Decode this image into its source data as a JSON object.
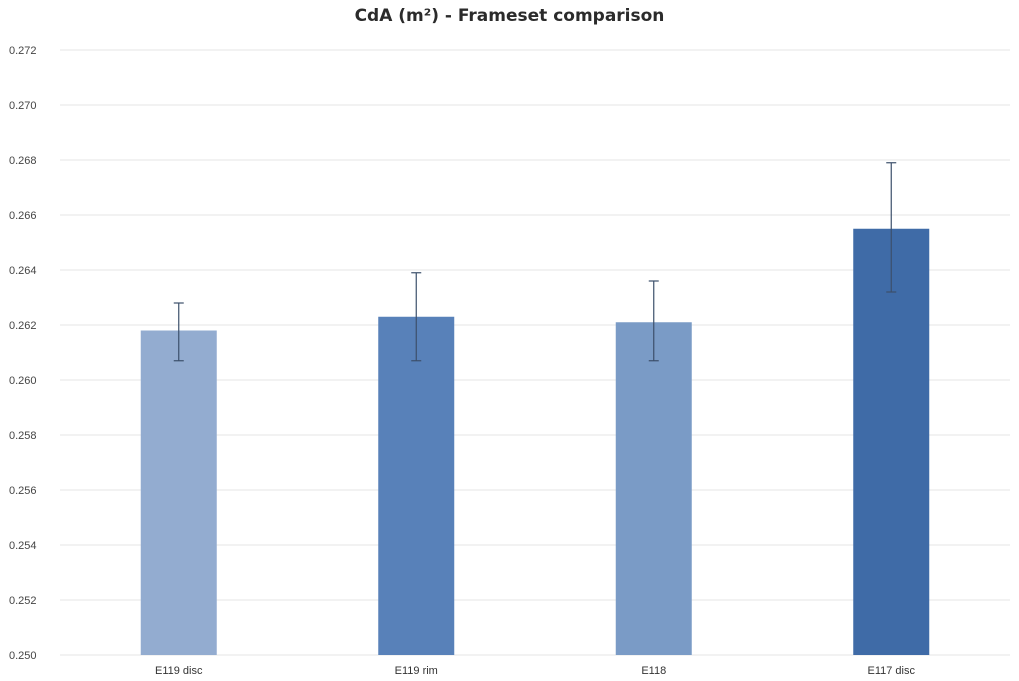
{
  "chart_data": {
    "type": "bar",
    "title": "CdA (m²) - Frameset comparison",
    "xlabel": "",
    "ylabel": "",
    "categories": [
      "E119 disc",
      "E119 rim",
      "E118",
      "E117 disc"
    ],
    "values": [
      0.2618,
      0.2623,
      0.2621,
      0.2655
    ],
    "error_low": [
      0.2607,
      0.2607,
      0.2607,
      0.2632
    ],
    "error_high": [
      0.2628,
      0.2639,
      0.2636,
      0.2679
    ],
    "bar_colors": [
      "#93acd0",
      "#5881b9",
      "#7a9bc6",
      "#3f6ba7"
    ],
    "ylim": [
      0.25,
      0.272
    ],
    "yticks": [
      "0.250",
      "0.252",
      "0.254",
      "0.256",
      "0.258",
      "0.260",
      "0.262",
      "0.264",
      "0.266",
      "0.268",
      "0.270",
      "0.272"
    ],
    "grid": true,
    "legend": "none"
  }
}
